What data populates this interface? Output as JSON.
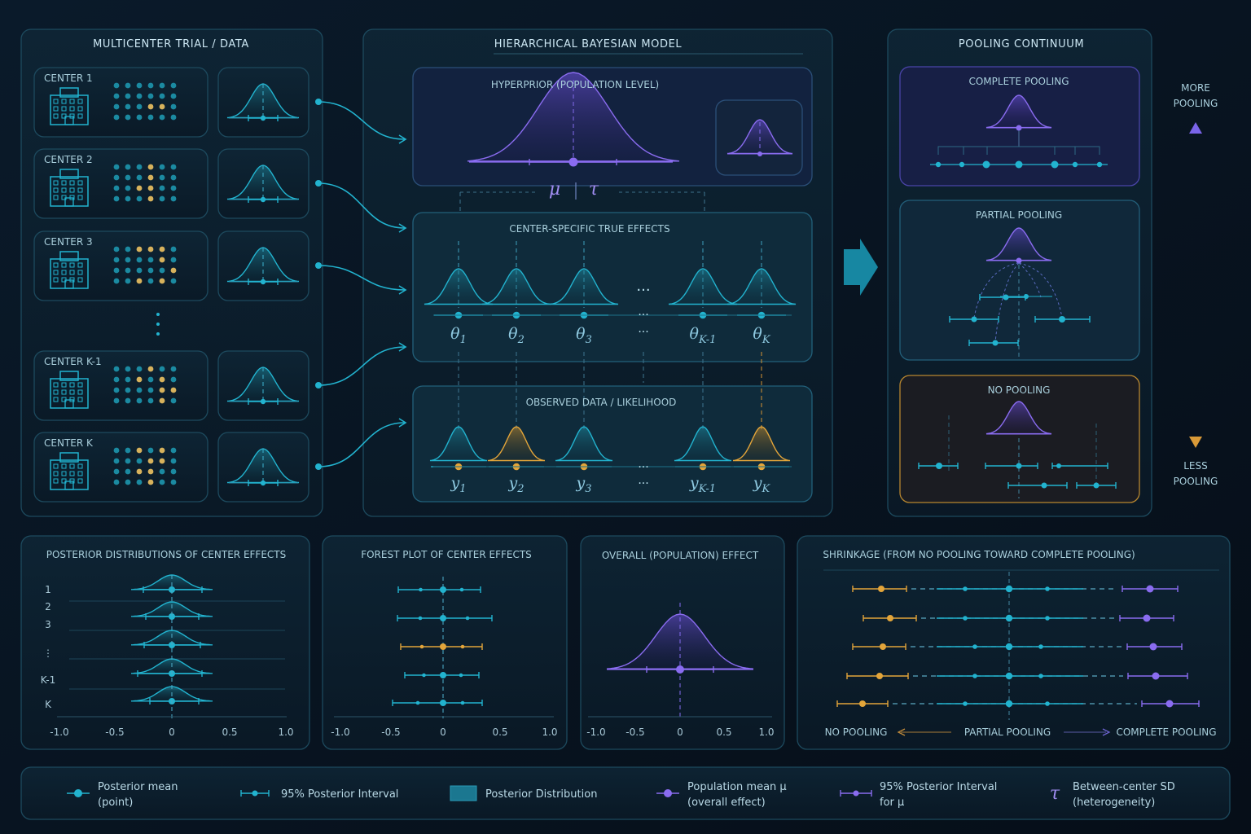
{
  "panels": {
    "multicenter": {
      "title": "MULTICENTER TRIAL / DATA",
      "centers": [
        {
          "label": "CENTER 1",
          "dots": "tttttt tttttt tttggt tttttt"
        },
        {
          "label": "CENTER 2",
          "dots": "tttgtt tttgtt ttggtt tttgtt"
        },
        {
          "label": "CENTER 3",
          "dots": "ttgggt ttttgt tttttg ttgtgt"
        },
        {
          "label": "CENTER K-1",
          "dots": "tttgtt ttgtgt ttttgg ttttgt"
        },
        {
          "label": "CENTER K",
          "dots": "ttgtgt tttggt ttggtt tttgtt"
        }
      ]
    },
    "model": {
      "title": "HIERARCHICAL BAYESIAN MODEL",
      "hyperprior": "HYPERPRIOR (POPULATION LEVEL)",
      "mu": "μ",
      "tau": "τ",
      "true_effects": "CENTER-SPECIFIC TRUE EFFECTS",
      "theta_labels": [
        {
          "base": "θ",
          "sub": "1"
        },
        {
          "base": "θ",
          "sub": "2"
        },
        {
          "base": "θ",
          "sub": "3"
        },
        {
          "base": "θ",
          "sub": "K-1"
        },
        {
          "base": "θ",
          "sub": "K"
        }
      ],
      "observed": "OBSERVED DATA / LIKELIHOOD",
      "y_labels": [
        {
          "base": "y",
          "sub": "1"
        },
        {
          "base": "y",
          "sub": "2"
        },
        {
          "base": "y",
          "sub": "3"
        },
        {
          "base": "y",
          "sub": "K-1"
        },
        {
          "base": "y",
          "sub": "K"
        }
      ],
      "ellipsis": "···"
    },
    "pooling": {
      "title": "POOLING CONTINUUM",
      "complete": "COMPLETE POOLING",
      "partial": "PARTIAL POOLING",
      "none": "NO POOLING",
      "more": [
        "MORE",
        "POOLING"
      ],
      "less": [
        "LESS",
        "POOLING"
      ]
    },
    "posterior": {
      "title": "POSTERIOR DISTRIBUTIONS OF CENTER EFFECTS",
      "rows": [
        "1",
        "2",
        "3",
        "⋮",
        "K-1",
        "K"
      ],
      "ticks": [
        "-1.0",
        "-0.5",
        "0",
        "0.5",
        "1.0"
      ]
    },
    "forest": {
      "title": "FOREST PLOT OF CENTER EFFECTS",
      "ticks": [
        "-1.0",
        "-0.5",
        "0",
        "0.5",
        "1.0"
      ]
    },
    "overall": {
      "title": "OVERALL (POPULATION) EFFECT",
      "ticks": [
        "-1.0",
        "-0.5",
        "0",
        "0.5",
        "1.0"
      ]
    },
    "shrinkage": {
      "title": "SHRINKAGE (FROM NO POOLING TOWARD COMPLETE POOLING)",
      "no_pooling": "NO POOLING",
      "partial_pooling": "PARTIAL POOLING",
      "complete_pooling": "COMPLETE POOLING"
    }
  },
  "legend": [
    {
      "icon": "posterior-mean",
      "line1": "Posterior mean",
      "line2": "(point)"
    },
    {
      "icon": "interval",
      "line1": "95% Posterior Interval",
      "line2": ""
    },
    {
      "icon": "distribution",
      "line1": "Posterior Distribution",
      "line2": ""
    },
    {
      "icon": "population-mean",
      "line1": "Population mean μ",
      "line2": "(overall effect)"
    },
    {
      "icon": "mu-interval",
      "line1": "95% Posterior Interval",
      "line2": "for μ"
    },
    {
      "icon": "tau",
      "line1": "Between-center SD",
      "line2": "(heterogeneity)"
    }
  ],
  "legend_tau_symbol": "τ",
  "colors": {
    "teal": "#22b3cf",
    "gold": "#e3a53a",
    "purple": "#8a6cf0",
    "panel_border": "#1d4a5e",
    "text": "#bde4f1"
  }
}
